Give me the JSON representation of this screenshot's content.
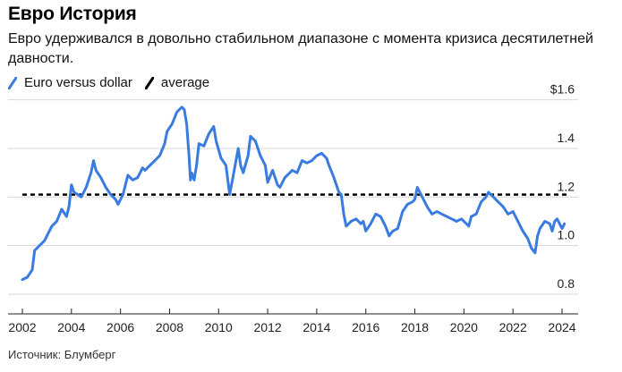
{
  "header": {
    "title": "Евро История",
    "subtitle": "Евро удерживался в довольно стабильном диапазоне с момента кризиса десятилетней давности."
  },
  "legend": [
    {
      "label": "Euro versus dollar",
      "color": "#3a7be0",
      "style": "solid"
    },
    {
      "label": "average",
      "color": "#000000",
      "style": "dashed"
    }
  ],
  "footer": {
    "source": "Источник: Блумберг"
  },
  "chart_data": {
    "type": "line",
    "title": "Евро История",
    "xlabel": "",
    "ylabel": "",
    "xlim": [
      2002,
      2024.3
    ],
    "ylim": [
      0.75,
      1.62
    ],
    "x_ticks": [
      "2002",
      "2004",
      "2006",
      "2008",
      "2010",
      "2012",
      "2014",
      "2016",
      "2018",
      "2020",
      "2022",
      "2024"
    ],
    "y_ticks": [
      {
        "value": 1.6,
        "label": "$1.6"
      },
      {
        "value": 1.4,
        "label": "1.4"
      },
      {
        "value": 1.2,
        "label": "1.2"
      },
      {
        "value": 1.0,
        "label": "1.0"
      },
      {
        "value": 0.8,
        "label": "0.8"
      }
    ],
    "grid": "horizontal",
    "series": [
      {
        "name": "Euro versus dollar",
        "color": "#3a7be0",
        "x": [
          2002.0,
          2002.2,
          2002.4,
          2002.5,
          2002.6,
          2002.9,
          2003.0,
          2003.2,
          2003.4,
          2003.6,
          2003.8,
          2003.9,
          2004.0,
          2004.1,
          2004.4,
          2004.6,
          2004.8,
          2004.9,
          2005.0,
          2005.2,
          2005.4,
          2005.6,
          2005.8,
          2005.9,
          2006.1,
          2006.3,
          2006.5,
          2006.7,
          2006.9,
          2007.0,
          2007.2,
          2007.4,
          2007.6,
          2007.8,
          2007.9,
          2008.1,
          2008.3,
          2008.5,
          2008.6,
          2008.7,
          2008.8,
          2008.85,
          2008.9,
          2009.0,
          2009.1,
          2009.2,
          2009.4,
          2009.6,
          2009.8,
          2009.9,
          2010.1,
          2010.3,
          2010.45,
          2010.6,
          2010.8,
          2010.9,
          2011.0,
          2011.2,
          2011.3,
          2011.5,
          2011.7,
          2011.9,
          2012.0,
          2012.2,
          2012.4,
          2012.5,
          2012.7,
          2012.9,
          2013.0,
          2013.2,
          2013.4,
          2013.6,
          2013.8,
          2014.0,
          2014.2,
          2014.4,
          2014.5,
          2014.7,
          2014.9,
          2015.0,
          2015.1,
          2015.2,
          2015.4,
          2015.6,
          2015.8,
          2015.9,
          2016.0,
          2016.2,
          2016.4,
          2016.6,
          2016.8,
          2016.95,
          2017.1,
          2017.3,
          2017.5,
          2017.7,
          2017.9,
          2018.0,
          2018.1,
          2018.3,
          2018.5,
          2018.7,
          2018.9,
          2019.1,
          2019.3,
          2019.5,
          2019.7,
          2019.9,
          2020.1,
          2020.2,
          2020.3,
          2020.5,
          2020.7,
          2020.9,
          2021.0,
          2021.2,
          2021.4,
          2021.6,
          2021.8,
          2022.0,
          2022.2,
          2022.4,
          2022.6,
          2022.75,
          2022.9,
          2023.0,
          2023.1,
          2023.3,
          2023.5,
          2023.6,
          2023.7,
          2023.8,
          2024.0,
          2024.1
        ],
        "values": [
          0.86,
          0.87,
          0.9,
          0.98,
          0.99,
          1.02,
          1.04,
          1.08,
          1.1,
          1.15,
          1.12,
          1.16,
          1.25,
          1.22,
          1.2,
          1.24,
          1.3,
          1.35,
          1.31,
          1.28,
          1.24,
          1.21,
          1.19,
          1.17,
          1.21,
          1.29,
          1.27,
          1.28,
          1.32,
          1.31,
          1.33,
          1.35,
          1.37,
          1.42,
          1.47,
          1.5,
          1.55,
          1.57,
          1.56,
          1.5,
          1.36,
          1.27,
          1.3,
          1.27,
          1.33,
          1.42,
          1.41,
          1.46,
          1.49,
          1.43,
          1.36,
          1.33,
          1.21,
          1.29,
          1.4,
          1.33,
          1.3,
          1.37,
          1.45,
          1.43,
          1.37,
          1.33,
          1.26,
          1.31,
          1.25,
          1.24,
          1.28,
          1.3,
          1.31,
          1.3,
          1.35,
          1.34,
          1.35,
          1.37,
          1.38,
          1.36,
          1.33,
          1.28,
          1.22,
          1.21,
          1.13,
          1.08,
          1.1,
          1.11,
          1.09,
          1.1,
          1.06,
          1.09,
          1.13,
          1.12,
          1.08,
          1.04,
          1.06,
          1.07,
          1.14,
          1.17,
          1.18,
          1.19,
          1.24,
          1.2,
          1.16,
          1.13,
          1.14,
          1.13,
          1.12,
          1.11,
          1.1,
          1.11,
          1.09,
          1.08,
          1.12,
          1.13,
          1.18,
          1.2,
          1.22,
          1.2,
          1.18,
          1.16,
          1.13,
          1.14,
          1.1,
          1.06,
          1.03,
          0.99,
          0.97,
          1.04,
          1.07,
          1.1,
          1.09,
          1.06,
          1.1,
          1.11,
          1.07,
          1.09
        ]
      },
      {
        "name": "average",
        "color": "#000000",
        "x": [
          2002.0,
          2024.3
        ],
        "values": [
          1.21,
          1.21
        ]
      }
    ]
  }
}
